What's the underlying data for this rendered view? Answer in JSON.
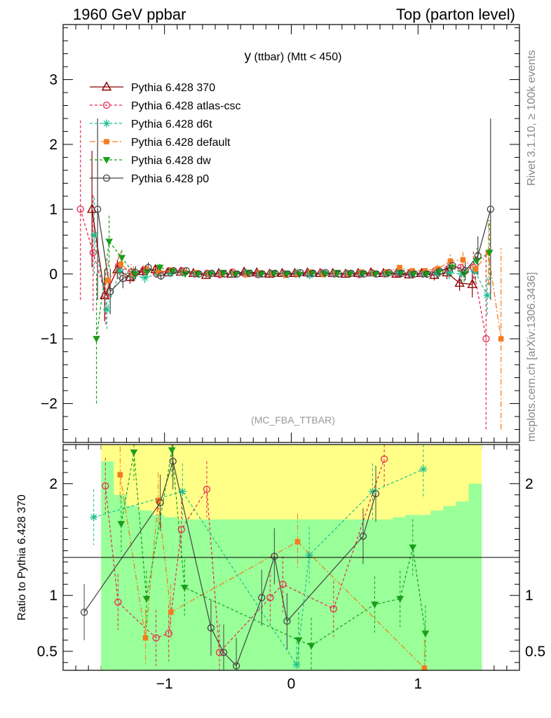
{
  "header": {
    "left": "1960 GeV ppbar",
    "right": "Top (parton level)"
  },
  "side_text": {
    "top": "Rivet 3.1.10, ≥ 100k events",
    "bottom": "mcplots.cern.ch [arXiv:1306.3436]"
  },
  "chart_data": [
    {
      "type": "line",
      "title": "y (ttbar) (Mtt < 450)",
      "title_main": "y",
      "title_sub": " (ttbar) (Mtt < 450)",
      "annotation": "(MC_FBA_TTBAR)",
      "xlim": [
        -1.8,
        1.8
      ],
      "ylim": [
        -2.6,
        3.85
      ],
      "x_ticks": [
        -1,
        0,
        1
      ],
      "x_tick_labels": [
        "−1",
        "0",
        "1"
      ],
      "y_ticks": [
        -2,
        -1,
        0,
        1,
        2,
        3
      ],
      "y_tick_labels": [
        "−2",
        "−1",
        "0",
        "1",
        "2",
        "3"
      ],
      "legend_position": "top-left",
      "x": [
        -1.65,
        -1.55,
        -1.45,
        -1.35,
        -1.25,
        -1.15,
        -1.05,
        -0.95,
        -0.85,
        -0.75,
        -0.65,
        -0.55,
        -0.45,
        -0.35,
        -0.25,
        -0.15,
        -0.05,
        0.05,
        0.15,
        0.25,
        0.35,
        0.45,
        0.55,
        0.65,
        0.75,
        0.85,
        0.95,
        1.05,
        1.15,
        1.25,
        1.35,
        1.45,
        1.55,
        1.65
      ],
      "series": [
        {
          "name": "Pythia 6.428 370",
          "color": "#8b0000",
          "dash": "",
          "marker": "triangle-open",
          "y": [
            null,
            1.0,
            -0.33,
            0.07,
            -0.05,
            0.04,
            0.07,
            0.02,
            0.03,
            0.01,
            -0.02,
            0.01,
            0.0,
            0.03,
            0.02,
            0.0,
            0.01,
            0.01,
            0.02,
            0.01,
            0.01,
            0.0,
            0.01,
            0.02,
            0.01,
            0.0,
            -0.01,
            0.01,
            -0.02,
            0.02,
            -0.14,
            -0.16,
            null,
            null
          ],
          "err": [
            null,
            0.9,
            0.4,
            0.15,
            0.1,
            0.08,
            0.06,
            0.05,
            0.04,
            0.04,
            0.04,
            0.04,
            0.04,
            0.04,
            0.04,
            0.04,
            0.04,
            0.04,
            0.04,
            0.04,
            0.04,
            0.04,
            0.04,
            0.04,
            0.04,
            0.05,
            0.06,
            0.06,
            0.08,
            0.1,
            0.12,
            0.2,
            null,
            null
          ]
        },
        {
          "name": "Pythia 6.428 atlas-csc",
          "color": "#e8274c",
          "dash": "4,3",
          "marker": "circle-open",
          "y": [
            1.0,
            0.33,
            -0.33,
            0.12,
            0.03,
            0.06,
            0.0,
            0.05,
            0.05,
            0.0,
            0.01,
            -0.01,
            0.03,
            0.0,
            -0.01,
            0.01,
            0.01,
            0.0,
            0.0,
            0.02,
            0.0,
            0.01,
            -0.01,
            0.02,
            0.0,
            0.01,
            0.01,
            0.0,
            0.05,
            0.08,
            0.1,
            0.1,
            -1.0,
            null
          ],
          "err": [
            1.4,
            0.9,
            0.45,
            0.2,
            0.12,
            0.08,
            0.06,
            0.05,
            0.05,
            0.04,
            0.04,
            0.04,
            0.04,
            0.04,
            0.04,
            0.04,
            0.04,
            0.04,
            0.04,
            0.04,
            0.04,
            0.04,
            0.04,
            0.04,
            0.04,
            0.05,
            0.05,
            0.06,
            0.07,
            0.1,
            0.15,
            0.25,
            1.4,
            null
          ]
        },
        {
          "name": "Pythia 6.428 d6t",
          "color": "#1bbf8f",
          "dash": "4,3",
          "marker": "star",
          "y": [
            null,
            0.6,
            -0.55,
            0.05,
            -0.02,
            -0.06,
            0.0,
            0.01,
            0.02,
            0.0,
            0.0,
            0.01,
            0.0,
            0.02,
            -0.01,
            0.01,
            0.0,
            0.02,
            -0.02,
            0.01,
            0.0,
            0.01,
            0.0,
            0.01,
            0.0,
            0.02,
            0.0,
            0.0,
            0.01,
            0.02,
            0.0,
            0.05,
            -0.33,
            null
          ],
          "err": [
            null,
            0.6,
            0.3,
            0.15,
            0.1,
            0.08,
            0.06,
            0.05,
            0.05,
            0.04,
            0.04,
            0.04,
            0.04,
            0.04,
            0.04,
            0.04,
            0.04,
            0.04,
            0.04,
            0.04,
            0.04,
            0.04,
            0.04,
            0.04,
            0.04,
            0.05,
            0.05,
            0.06,
            0.08,
            0.1,
            0.12,
            0.2,
            0.3,
            null
          ]
        },
        {
          "name": "Pythia 6.428 default",
          "color": "#f47b20",
          "dash": "8,3,2,3",
          "marker": "square",
          "y": [
            null,
            null,
            -0.1,
            0.15,
            0.0,
            0.08,
            0.03,
            0.06,
            0.03,
            0.02,
            0.0,
            0.0,
            0.01,
            -0.01,
            0.02,
            0.0,
            -0.02,
            0.0,
            0.03,
            -0.01,
            0.02,
            0.0,
            0.03,
            0.01,
            0.03,
            0.1,
            0.05,
            0.05,
            0.08,
            0.2,
            0.22,
            0.08,
            0.33,
            -1.0
          ],
          "err": [
            null,
            null,
            0.3,
            0.2,
            0.12,
            0.08,
            0.06,
            0.05,
            0.05,
            0.04,
            0.04,
            0.04,
            0.04,
            0.04,
            0.04,
            0.04,
            0.04,
            0.04,
            0.04,
            0.04,
            0.04,
            0.04,
            0.04,
            0.04,
            0.04,
            0.05,
            0.05,
            0.06,
            0.08,
            0.1,
            0.12,
            0.2,
            0.5,
            1.4
          ]
        },
        {
          "name": "Pythia 6.428 dw",
          "color": "#1a9e1a",
          "dash": "4,3",
          "marker": "triangle-down",
          "y": [
            null,
            -1.0,
            0.5,
            0.25,
            0.0,
            0.03,
            0.1,
            0.04,
            0.0,
            0.0,
            0.0,
            0.02,
            0.0,
            0.02,
            0.0,
            0.01,
            0.0,
            -0.01,
            0.01,
            0.0,
            0.02,
            0.0,
            0.01,
            0.0,
            0.0,
            0.02,
            0.0,
            0.0,
            0.03,
            0.1,
            0.0,
            0.2,
            0.33,
            null
          ],
          "err": [
            null,
            1.0,
            0.4,
            0.15,
            0.1,
            0.08,
            0.06,
            0.05,
            0.05,
            0.04,
            0.04,
            0.04,
            0.04,
            0.04,
            0.04,
            0.04,
            0.04,
            0.04,
            0.04,
            0.04,
            0.04,
            0.04,
            0.04,
            0.04,
            0.04,
            0.05,
            0.05,
            0.06,
            0.08,
            0.1,
            0.12,
            0.2,
            0.5,
            null
          ]
        },
        {
          "name": "Pythia 6.428 p0",
          "color": "#444444",
          "dash": "",
          "marker": "circle-open",
          "y": [
            null,
            1.0,
            -0.27,
            -0.07,
            0.02,
            0.1,
            -0.03,
            0.05,
            0.05,
            0.0,
            0.01,
            0.0,
            0.0,
            0.01,
            0.0,
            0.01,
            0.0,
            0.02,
            0.01,
            0.02,
            0.0,
            0.01,
            0.0,
            0.0,
            0.02,
            0.01,
            0.0,
            0.0,
            0.04,
            0.13,
            0.05,
            0.28,
            1.0,
            null
          ],
          "err": [
            null,
            1.4,
            0.35,
            0.15,
            0.1,
            0.08,
            0.06,
            0.05,
            0.05,
            0.04,
            0.04,
            0.04,
            0.04,
            0.04,
            0.04,
            0.04,
            0.04,
            0.04,
            0.04,
            0.04,
            0.04,
            0.04,
            0.04,
            0.04,
            0.04,
            0.05,
            0.05,
            0.06,
            0.08,
            0.1,
            0.15,
            0.3,
            1.4,
            null
          ]
        }
      ]
    },
    {
      "type": "line",
      "ylabel": "Ratio to Pythia 6.428 370",
      "xlim": [
        -1.8,
        1.8
      ],
      "ylim": [
        0.33,
        2.35
      ],
      "y_ticks": [
        0.5,
        1,
        2
      ],
      "y_tick_labels": [
        "0.5",
        "1",
        "2"
      ],
      "x_ticks": [
        -1,
        0,
        1
      ],
      "x_tick_labels": [
        "−1",
        "0",
        "1"
      ],
      "reference_line": 1,
      "band_x_range": [
        -1.5,
        1.5
      ],
      "band_colors": {
        "inner": "#99ff99",
        "outer": "#ffff88"
      },
      "series": [
        {
          "name": "Pythia 6.428 atlas-csc",
          "y": [
            null,
            null,
            1.98,
            0.94,
            null,
            null,
            0.62,
            0.66,
            1.59,
            null,
            1.95,
            0.49,
            null,
            null,
            null,
            0.98,
            1.1,
            null,
            null,
            null,
            0.88,
            null,
            null,
            null,
            2.22,
            null,
            null,
            null,
            null,
            null,
            null,
            null,
            null,
            null
          ]
        },
        {
          "name": "Pythia 6.428 d6t",
          "y": [
            null,
            1.7,
            null,
            null,
            null,
            null,
            null,
            null,
            1.93,
            null,
            null,
            null,
            null,
            null,
            null,
            null,
            null,
            0.38,
            1.36,
            null,
            null,
            null,
            null,
            1.93,
            null,
            null,
            null,
            2.13,
            null,
            null,
            null,
            null,
            null,
            null
          ]
        },
        {
          "name": "Pythia 6.428 default",
          "y": [
            null,
            null,
            null,
            2.08,
            null,
            0.62,
            1.85,
            0.85,
            null,
            null,
            null,
            null,
            null,
            null,
            null,
            null,
            null,
            1.48,
            null,
            null,
            null,
            null,
            null,
            null,
            null,
            null,
            null,
            0.35,
            null,
            null,
            null,
            null,
            null,
            null
          ]
        },
        {
          "name": "Pythia 6.428 dw",
          "y": [
            null,
            null,
            null,
            1.64,
            2.28,
            0.97,
            null,
            2.3,
            1.07,
            null,
            null,
            null,
            null,
            null,
            null,
            null,
            null,
            0.6,
            0.55,
            null,
            null,
            null,
            null,
            0.92,
            null,
            0.97,
            1.43,
            0.66,
            null,
            null,
            null,
            null,
            null,
            null
          ]
        },
        {
          "name": "Pythia 6.428 p0",
          "y": [
            0.85,
            null,
            null,
            null,
            null,
            null,
            1.83,
            2.2,
            null,
            null,
            0.71,
            0.49,
            0.37,
            null,
            0.98,
            1.35,
            0.77,
            null,
            null,
            null,
            null,
            null,
            1.53,
            1.91,
            null,
            null,
            null,
            null,
            null,
            null,
            null,
            null,
            null,
            null
          ]
        }
      ]
    }
  ]
}
